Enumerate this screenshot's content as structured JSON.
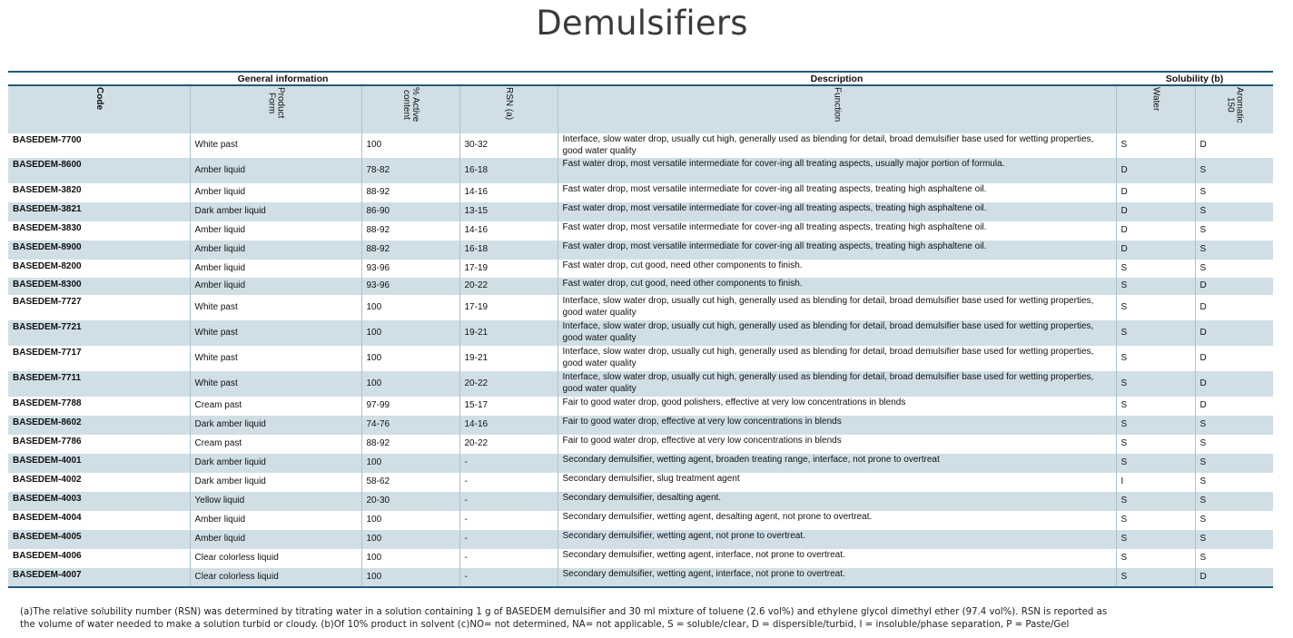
{
  "title": "Demulsifiers",
  "colors": {
    "rule": "#1f5a7a",
    "alt_row": "#d0dfe6",
    "header_bg": "#d0dfe6",
    "col_border": "#a9c2d0"
  },
  "groups": {
    "general": "General information",
    "description": "Description",
    "solubility": "Solubility (b)"
  },
  "columns": {
    "code": "Code",
    "form": "Product\nForm",
    "active": "% Active\ncontent",
    "rsn": "RSN (a)",
    "function": "Function",
    "water": "Water",
    "aromatic": "Aromatic\n150"
  },
  "rows": [
    {
      "code": "BASEDEM-7700",
      "form": "White past",
      "active": "100",
      "rsn": "30-32",
      "function": "Interface, slow water drop, usually cut high, generally used as blending for detail, broad demulsifier base used for wetting properties, good water quality",
      "water": "S",
      "aromatic": "D"
    },
    {
      "code": "BASEDEM-8600",
      "form": "Amber liquid",
      "active": "78-82",
      "rsn": "16-18",
      "function": "Fast water drop, most versatile intermediate for cover-ing all treating aspects, usually major portion of formula.",
      "water": "D",
      "aromatic": "S"
    },
    {
      "code": "BASEDEM-3820",
      "form": "Amber liquid",
      "active": "88-92",
      "rsn": "14-16",
      "function": "Fast water drop, most versatile intermediate for cover-ing all treating aspects, treating high asphaltene oil.",
      "water": "D",
      "aromatic": "S"
    },
    {
      "code": "BASEDEM-3821",
      "form": "Dark amber liquid",
      "active": "86-90",
      "rsn": "13-15",
      "function": "Fast water drop, most versatile intermediate for cover-ing all treating aspects, treating high asphaltene oil.",
      "water": "D",
      "aromatic": "S"
    },
    {
      "code": "BASEDEM-3830",
      "form": "Amber liquid",
      "active": "88-92",
      "rsn": "14-16",
      "function": "Fast water drop, most versatile intermediate for cover-ing all treating aspects, treating high asphaltene oil.",
      "water": "D",
      "aromatic": "S"
    },
    {
      "code": "BASEDEM-8900",
      "form": "Amber liquid",
      "active": "88-92",
      "rsn": "16-18",
      "function": "Fast water drop, most versatile intermediate for cover-ing all treating aspects, treating high asphaltene oil.",
      "water": "D",
      "aromatic": "S"
    },
    {
      "code": "BASEDEM-8200",
      "form": "Amber liquid",
      "active": "93-96",
      "rsn": "17-19",
      "function": "Fast water drop, cut good, need other components to finish.",
      "water": "S",
      "aromatic": "S"
    },
    {
      "code": "BASEDEM-8300",
      "form": "Amber liquid",
      "active": "93-96",
      "rsn": "20-22",
      "function": "Fast water drop, cut good, need other components to finish.",
      "water": "S",
      "aromatic": "D"
    },
    {
      "code": "BASEDEM-7727",
      "form": "White past",
      "active": "100",
      "rsn": "17-19",
      "function": "Interface, slow water drop, usually cut high, generally used as blending for detail, broad demulsifier base used for wetting properties, good water quality",
      "water": "S",
      "aromatic": "D"
    },
    {
      "code": "BASEDEM-7721",
      "form": "White past",
      "active": "100",
      "rsn": "19-21",
      "function": "Interface, slow water drop, usually cut high, generally used as blending for detail, broad demulsifier base used for wetting properties, good water quality",
      "water": "S",
      "aromatic": "D"
    },
    {
      "code": "BASEDEM-7717",
      "form": "White past",
      "active": "100",
      "rsn": "19-21",
      "function": "Interface, slow water drop, usually cut high, generally used as blending for detail, broad demulsifier base used for wetting properties, good water quality",
      "water": "S",
      "aromatic": "D"
    },
    {
      "code": "BASEDEM-7711",
      "form": "White past",
      "active": "100",
      "rsn": "20-22",
      "function": "Interface, slow water drop, usually cut high, generally used as blending for detail, broad demulsifier base used for wetting properties, good water quality",
      "water": "S",
      "aromatic": "D"
    },
    {
      "code": "BASEDEM-7788",
      "form": "Cream past",
      "active": "97-99",
      "rsn": "15-17",
      "function": "Fair to good water drop, good polishers, effective at very low concentrations in blends",
      "water": "S",
      "aromatic": "D"
    },
    {
      "code": "BASEDEM-8602",
      "form": "Dark amber liquid",
      "active": "74-76",
      "rsn": "14-16",
      "function": "Fair to good water drop, effective at very low concentrations in blends",
      "water": "S",
      "aromatic": "S"
    },
    {
      "code": "BASEDEM-7786",
      "form": "Cream past",
      "active": "88-92",
      "rsn": "20-22",
      "function": "Fair to good water drop, effective at very low concentrations in blends",
      "water": "S",
      "aromatic": "S"
    },
    {
      "code": "BASEDEM-4001",
      "form": "Dark amber liquid",
      "active": "100",
      "rsn": "-",
      "function": "Secondary demulsifier, wetting agent, broaden treating range, interface, not prone to overtreat",
      "water": "S",
      "aromatic": "S"
    },
    {
      "code": "BASEDEM-4002",
      "form": "Dark amber liquid",
      "active": "58-62",
      "rsn": "-",
      "function": "Secondary demulsifier, slug treatment agent",
      "water": "I",
      "aromatic": "S"
    },
    {
      "code": "BASEDEM-4003",
      "form": "Yellow liquid",
      "active": "20-30",
      "rsn": "-",
      "function": "Secondary demulsifier, desalting agent.",
      "water": "S",
      "aromatic": "S"
    },
    {
      "code": "BASEDEM-4004",
      "form": "Amber liquid",
      "active": "100",
      "rsn": "-",
      "function": "Secondary demulsifier, wetting agent, desalting agent, not prone to overtreat.",
      "water": "S",
      "aromatic": "S"
    },
    {
      "code": "BASEDEM-4005",
      "form": "Amber liquid",
      "active": "100",
      "rsn": "-",
      "function": "Secondary demulsifier, wetting agent, not prone to overtreat.",
      "water": "S",
      "aromatic": "S"
    },
    {
      "code": "BASEDEM-4006",
      "form": "Clear colorless liquid",
      "active": "100",
      "rsn": "-",
      "function": "Secondary demulsifier, wetting agent, interface, not prone to overtreat.",
      "water": "S",
      "aromatic": "S"
    },
    {
      "code": "BASEDEM-4007",
      "form": "Clear colorless liquid",
      "active": "100",
      "rsn": "-",
      "function": "Secondary demulsifier, wetting agent, interface, not prone to overtreat.",
      "water": "S",
      "aromatic": "D"
    }
  ],
  "footnote": {
    "line1": "(a)The relative solubility number (RSN) was determined by titrating water in a solution containing 1 g of BASEDEM demulsifier and 30 ml mixture of toluene (2.6 vol%) and ethylene glycol dimethyl ether (97.4 vol%). RSN is reported as",
    "line2": "the volume of water needed to make a solution turbid or cloudy. (b)Of 10% product in solvent   (c)NO= not determined, NA= not applicable, S = soluble/clear, D = dispersible/turbid, I = insoluble/phase separation, P = Paste/Gel"
  }
}
